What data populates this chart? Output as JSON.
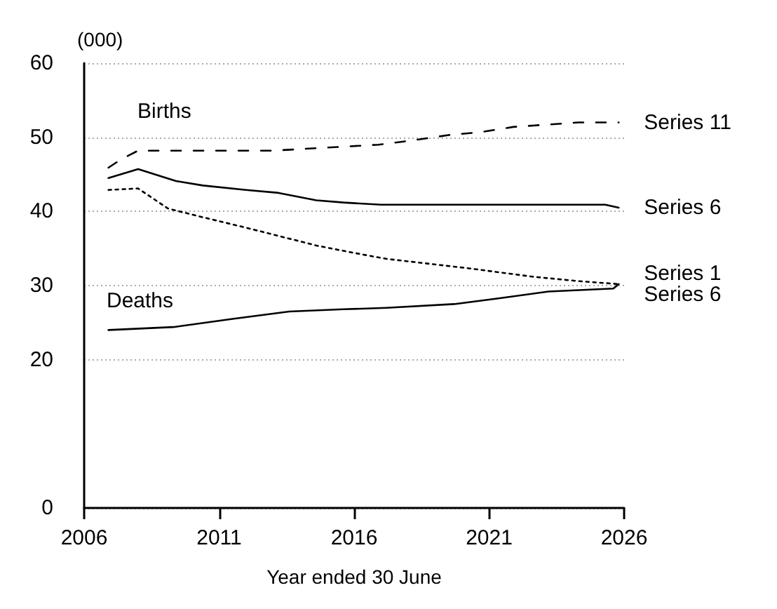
{
  "chart_data": {
    "type": "line",
    "ylabel": "(000)",
    "xlabel": "Year ended 30 June",
    "xlim": [
      2006,
      2026
    ],
    "xticks": [
      2006,
      2011,
      2016,
      2021,
      2026
    ],
    "ylim": [
      0,
      60
    ],
    "yticks": [
      0,
      20,
      30,
      40,
      50,
      60
    ],
    "grid": "y",
    "legend": false,
    "marker": "none",
    "annotations": [
      "Births",
      "Deaths"
    ],
    "series": [
      {
        "name": "Series 11",
        "color": "#000000",
        "line_style": "dashed",
        "x": [
          2006.9,
          2007.4,
          2008,
          2013,
          2016.9,
          2018.2,
          2019.5,
          2020.7,
          2021.9,
          2023.1,
          2024.3,
          2025.8
        ],
        "values": [
          45.9,
          47.1,
          48.2,
          48.2,
          49.0,
          49.6,
          50.3,
          50.7,
          51.4,
          51.7,
          52.0,
          52.0
        ]
      },
      {
        "name": "Series 6",
        "color": "#000000",
        "line_style": "solid",
        "x": [
          2006.9,
          2008,
          2009.4,
          2010.4,
          2012,
          2013.2,
          2014.6,
          2015.6,
          2017,
          2025.3,
          2025.8
        ],
        "values": [
          44.5,
          45.7,
          44.1,
          43.5,
          42.9,
          42.5,
          41.5,
          41.2,
          40.9,
          40.9,
          40.5
        ]
      },
      {
        "name": "Series 1",
        "color": "#000000",
        "line_style": "dotted",
        "x": [
          2006.9,
          2008,
          2009.1,
          2010.3,
          2012,
          2013.2,
          2014.6,
          2016,
          2017.2,
          2020.3,
          2022.6,
          2024.3,
          2025.8
        ],
        "values": [
          42.9,
          43.1,
          40.4,
          39.3,
          37.8,
          36.7,
          35.4,
          34.4,
          33.6,
          32.3,
          31.2,
          30.6,
          30.2
        ]
      },
      {
        "name": "Series 6",
        "color": "#000000",
        "line_style": "solid",
        "x": [
          2006.9,
          2009.3,
          2011.5,
          2013.6,
          2015.6,
          2017.2,
          2019.7,
          2021.4,
          2023.2,
          2025.6,
          2025.8
        ],
        "values": [
          24.0,
          24.4,
          25.5,
          26.5,
          26.8,
          27.0,
          27.5,
          28.3,
          29.2,
          29.6,
          30.2
        ]
      }
    ]
  }
}
